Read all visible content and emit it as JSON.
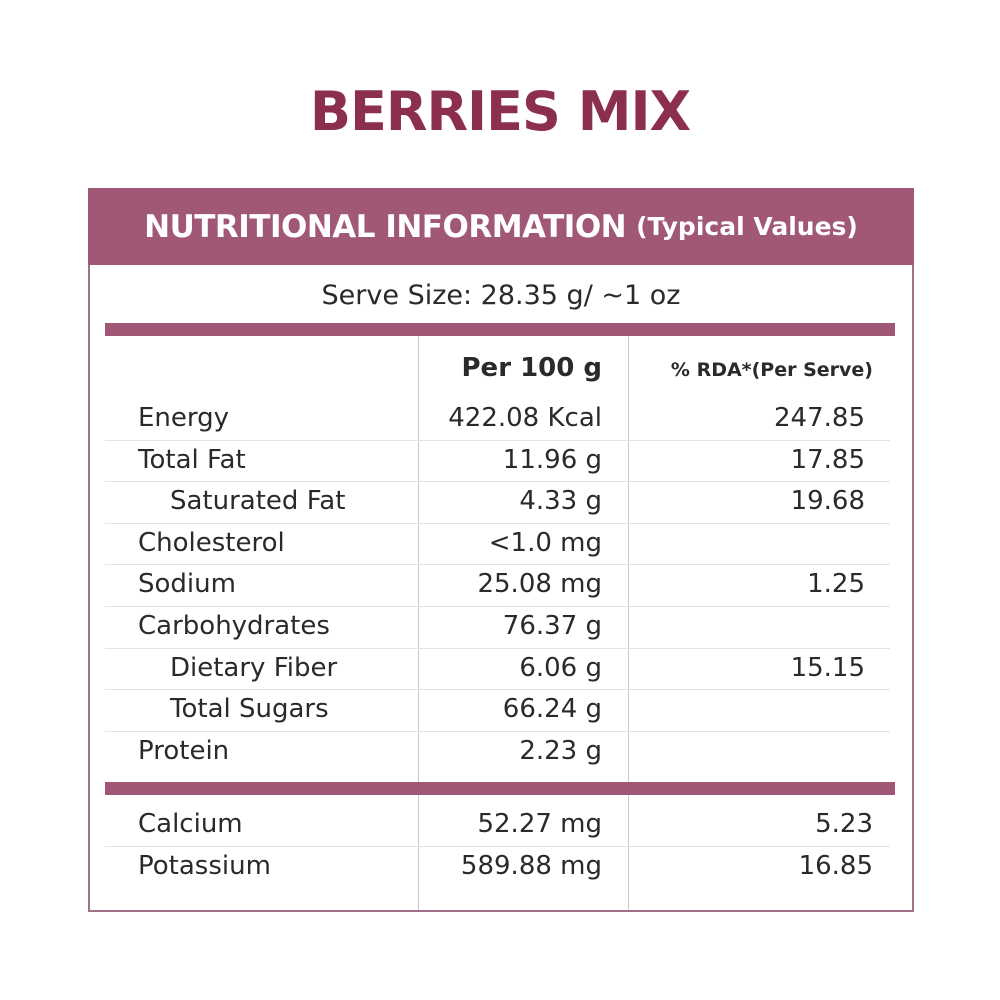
{
  "title": "BERRIES MIX",
  "header": {
    "title": "NUTRITIONAL INFORMATION",
    "subtitle": "(Typical Values)"
  },
  "serve_size": "Serve Size: 28.35 g/ ~1 oz",
  "table": {
    "columns": [
      "Per 100 g",
      "% RDA*(Per Serve)"
    ],
    "sections": [
      [
        {
          "name": "Energy",
          "per_100g": "422.08 Kcal",
          "rda": "247.85"
        },
        {
          "name": "Total Fat",
          "per_100g": "11.96 g",
          "rda": "17.85"
        },
        {
          "name": "Saturated Fat",
          "per_100g": "4.33 g",
          "rda": "19.68",
          "sub": true
        },
        {
          "name": "Cholesterol",
          "per_100g": "<1.0 mg",
          "rda": null
        },
        {
          "name": "Sodium",
          "per_100g": "25.08 mg",
          "rda": "1.25"
        },
        {
          "name": "Carbohydrates",
          "per_100g": "76.37 g",
          "rda": null
        },
        {
          "name": "Dietary Fiber",
          "per_100g": "6.06 g",
          "rda": "15.15",
          "sub": true
        },
        {
          "name": "Total Sugars",
          "per_100g": "66.24 g",
          "rda": null,
          "sub": true
        },
        {
          "name": "Protein",
          "per_100g": "2.23 g",
          "rda": null
        }
      ],
      [
        {
          "name": "Calcium",
          "per_100g": "52.27 mg",
          "rda": "5.23"
        },
        {
          "name": "Potassium",
          "per_100g": "589.88 mg",
          "rda": "16.85"
        }
      ]
    ]
  }
}
